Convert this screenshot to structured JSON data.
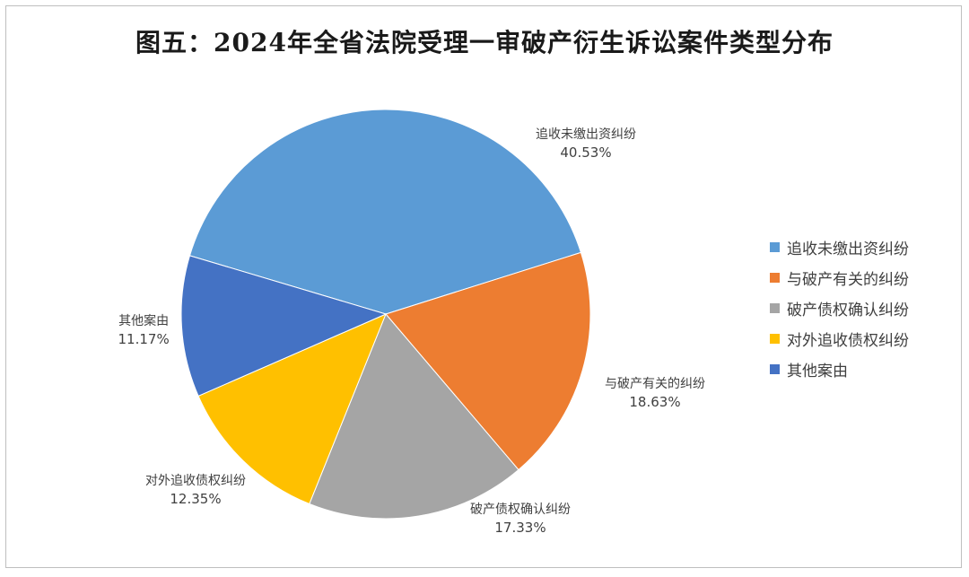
{
  "chart_data": {
    "type": "pie",
    "title": "图五：2024年全省法院受理一审破产衍生诉讼案件类型分布",
    "slices": [
      {
        "name": "追收未缴出资纠纷",
        "value": 40.53,
        "label": "40.53%",
        "color": "#5b9bd5"
      },
      {
        "name": "与破产有关的纠纷",
        "value": 18.63,
        "label": "18.63%",
        "color": "#ed7d31"
      },
      {
        "name": "破产债权确认纠纷",
        "value": 17.33,
        "label": "17.33%",
        "color": "#a5a5a5"
      },
      {
        "name": "对外追收债权纠纷",
        "value": 12.35,
        "label": "12.35%",
        "color": "#ffc000"
      },
      {
        "name": "其他案由",
        "value": 11.17,
        "label": "11.17%",
        "color": "#4472c4"
      }
    ],
    "legend": [
      "追收未缴出资纠纷",
      "与破产有关的纠纷",
      "破产债权确认纠纷",
      "对外追收债权纠纷",
      "其他案由"
    ],
    "legend_position": "right"
  }
}
